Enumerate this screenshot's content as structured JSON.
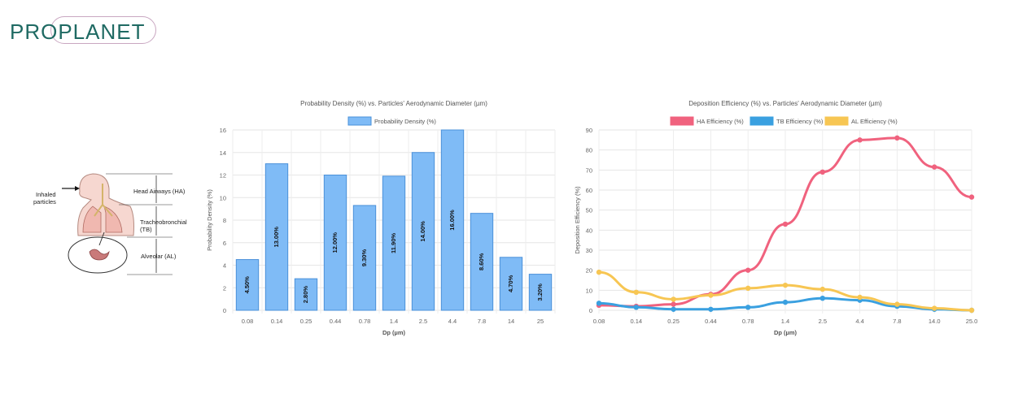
{
  "logo": {
    "text": "PROPLANET"
  },
  "diagram": {
    "labels": {
      "inhaled": "Inhaled",
      "particles": "particles",
      "ha": "Head Airways (HA)",
      "tb1": "Tracheobronchial",
      "tb2": "(TB)",
      "al": "Alveolar (AL)"
    }
  },
  "chart_data": [
    {
      "type": "bar",
      "title": "Probability Density (%) vs. Particles' Aerodynamic Diameter (µm)",
      "legend": [
        "Probability Density (%)"
      ],
      "xlabel": "Dp (µm)",
      "ylabel": "Probability Density (%)",
      "ylim": [
        0,
        16
      ],
      "yticks": [
        0,
        2,
        4,
        6,
        8,
        10,
        12,
        14,
        16
      ],
      "categories": [
        "0.08",
        "0.14",
        "0.25",
        "0.44",
        "0.78",
        "1.4",
        "2.5",
        "4.4",
        "7.8",
        "14",
        "25"
      ],
      "values": [
        4.5,
        13.0,
        2.8,
        12.0,
        9.3,
        11.9,
        14.0,
        16.0,
        8.6,
        4.7,
        3.2
      ],
      "data_labels": [
        "4.50%",
        "13.00%",
        "2.80%",
        "12.00%",
        "9.30%",
        "11.90%",
        "14.00%",
        "16.00%",
        "8.60%",
        "4.70%",
        "3.20%"
      ],
      "colors": {
        "fill": "#7fbbf6",
        "stroke": "#4a90d9"
      }
    },
    {
      "type": "line",
      "title": "Deposition Efficiency (%) vs. Particles' Aerodynamic Diameter (µm)",
      "xlabel": "Dp (µm)",
      "ylabel": "Deposition Efficiency (%)",
      "ylim": [
        0,
        90
      ],
      "yticks": [
        0,
        10,
        20,
        30,
        40,
        50,
        60,
        70,
        80,
        90
      ],
      "categories": [
        "0.08",
        "0.14",
        "0.25",
        "0.44",
        "0.78",
        "1.4",
        "2.5",
        "4.4",
        "7.8",
        "14.0",
        "25.0"
      ],
      "series": [
        {
          "name": "HA Efficiency (%)",
          "color": "#f0627e",
          "values": [
            2.5,
            2.0,
            3.0,
            8.0,
            20.0,
            43.0,
            69.0,
            85.0,
            86.0,
            71.5,
            56.5
          ]
        },
        {
          "name": "TB Efficiency (%)",
          "color": "#3aa0e0",
          "values": [
            3.5,
            1.5,
            0.5,
            0.5,
            1.5,
            4.0,
            6.0,
            5.0,
            2.0,
            0.5,
            0.0
          ]
        },
        {
          "name": "AL Efficiency (%)",
          "color": "#f7c653",
          "values": [
            19.0,
            9.0,
            5.5,
            7.5,
            11.0,
            12.5,
            10.5,
            6.5,
            3.0,
            1.0,
            0.0
          ]
        }
      ]
    }
  ]
}
